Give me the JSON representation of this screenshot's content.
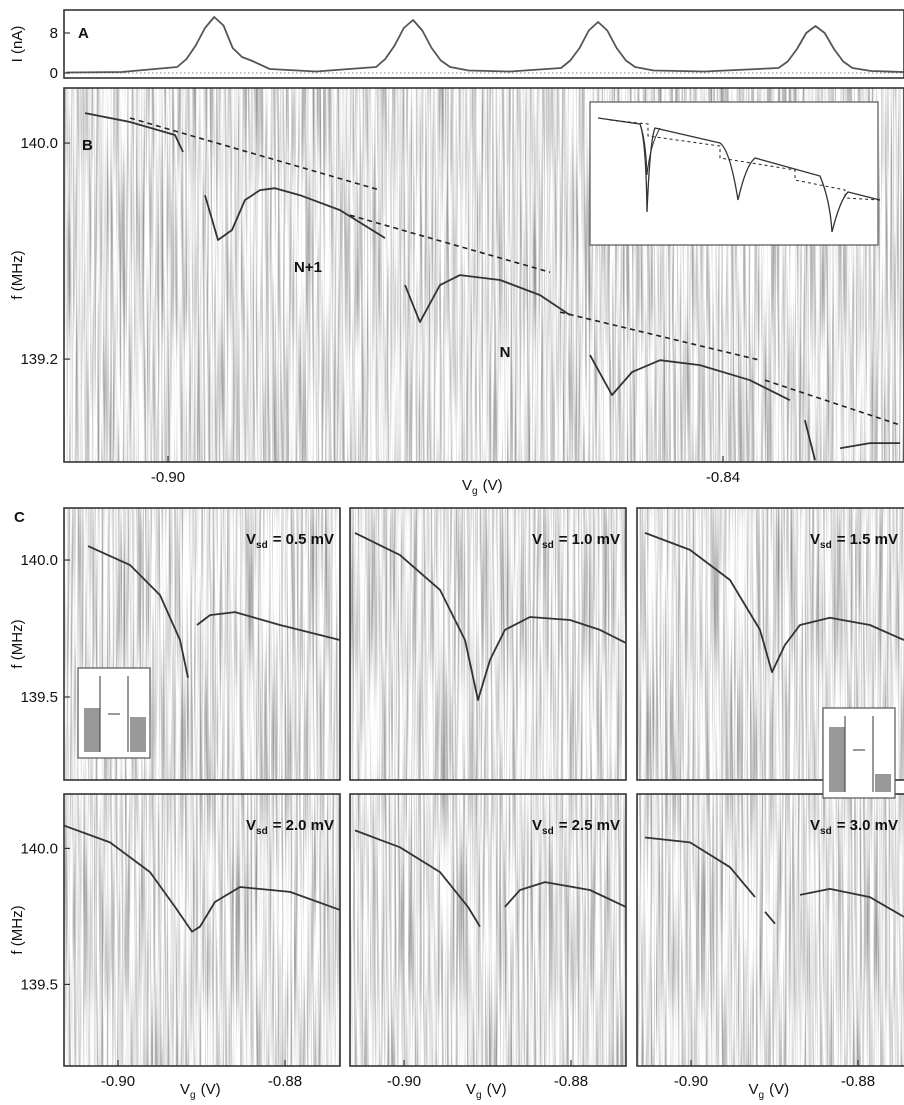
{
  "chart_data": [
    {
      "type": "line",
      "panel_label": "A",
      "ylabel": "I (nA)",
      "color": "#555555",
      "x": [
        -0.911,
        -0.905,
        -0.899,
        -0.898,
        -0.897,
        -0.896,
        -0.895,
        -0.894,
        -0.893,
        -0.892,
        -0.891,
        -0.889,
        -0.884,
        -0.8775,
        -0.8765,
        -0.8755,
        -0.8745,
        -0.8735,
        -0.8725,
        -0.8715,
        -0.8705,
        -0.8695,
        -0.8675,
        -0.863,
        -0.8575,
        -0.8565,
        -0.8555,
        -0.8545,
        -0.8535,
        -0.8525,
        -0.8515,
        -0.8505,
        -0.8495,
        -0.8475,
        -0.842,
        -0.834,
        -0.833,
        -0.832,
        -0.831,
        -0.83,
        -0.829,
        -0.828,
        -0.827,
        -0.826,
        -0.824,
        -0.8205
      ],
      "values": [
        0.1,
        0.2,
        1.2,
        2.8,
        5.5,
        9,
        11.2,
        9.5,
        5,
        3.2,
        2.5,
        0.8,
        0.3,
        1.2,
        2.8,
        5.5,
        9,
        10.6,
        8.5,
        5,
        2.5,
        1.2,
        0.5,
        0.3,
        1,
        2.5,
        5,
        8.5,
        10.2,
        8.5,
        5,
        2.5,
        1.2,
        0.5,
        0.3,
        1,
        2.3,
        4.8,
        8,
        9.4,
        8,
        4.8,
        2.3,
        1,
        0.4,
        0.2
      ],
      "reference_line": 0,
      "xlim": [
        -0.91124,
        -0.82043
      ],
      "ylim": [
        -1,
        12.6
      ],
      "yticks": [
        0,
        8
      ]
    },
    {
      "type": "line",
      "panel_label": "B",
      "ylabel": "f (MHz)",
      "xlabel": {
        "symbol": "V",
        "subscript": "g",
        "rest": "(V)"
      },
      "annotations": [
        "N+1",
        "N"
      ],
      "series": [
        {
          "color": "#333333",
          "dashed": false,
          "x": [
            -0.90897,
            -0.90411,
            -0.89924,
            -0.89838,
            null,
            -0.896,
            -0.89459,
            -0.89308,
            -0.89168,
            -0.89005,
            -0.88843,
            -0.88573,
            -0.8814,
            -0.87654,
            null,
            -0.87438,
            -0.87276,
            -0.87059,
            -0.86843,
            -0.86411,
            -0.85978,
            -0.85654,
            null,
            -0.85438,
            -0.852,
            -0.84984,
            -0.84681,
            -0.84249,
            -0.83708,
            -0.83276,
            null,
            -0.83114,
            -0.83005,
            null,
            -0.82735,
            -0.82411,
            -0.82086
          ],
          "values": [
            140.111,
            140.078,
            140.03,
            139.967,
            null,
            139.807,
            139.641,
            139.678,
            139.789,
            139.826,
            139.833,
            139.807,
            139.752,
            139.648,
            null,
            139.474,
            139.337,
            139.474,
            139.511,
            139.493,
            139.437,
            139.363,
            null,
            139.215,
            139.067,
            139.152,
            139.196,
            139.178,
            139.122,
            139.048,
            null,
            138.974,
            138.826,
            null,
            138.87,
            138.889,
            138.889
          ]
        },
        {
          "color": "#222222",
          "dashed": true,
          "x": [
            -0.90411,
            -0.87708,
            null,
            -0.88032,
            -0.8587,
            null,
            -0.85762,
            -0.836,
            null,
            -0.83546,
            -0.82086
          ],
          "values": [
            140.093,
            139.826,
            null,
            139.733,
            139.522,
            null,
            139.374,
            139.196,
            null,
            139.122,
            138.956
          ]
        }
      ],
      "xlim": [
        -0.91124,
        -0.82043
      ],
      "ylim": [
        138.819,
        140.204
      ],
      "xticks": [
        {
          "value": -0.9,
          "label": "-0.90"
        },
        -0.84
      ],
      "yticks": [
        {
          "value": 140,
          "label": "140.0"
        },
        139.2
      ]
    },
    {
      "type": "line",
      "panel_label": "C",
      "ylabel": "f (MHz)",
      "color": "#333333",
      "title": {
        "symbol": "V",
        "subscript": "sd",
        "rest": "= 0.5 mV"
      },
      "x": [
        -0.9036,
        -0.89857,
        -0.89497,
        -0.89258,
        -0.89162,
        null,
        -0.89054,
        -0.88898,
        -0.88599,
        -0.8806,
        -0.87342
      ],
      "values": [
        140.051,
        139.982,
        139.872,
        139.708,
        139.57,
        null,
        139.763,
        139.799,
        139.81,
        139.763,
        139.708
      ],
      "xlim": [
        -0.90647,
        -0.87341
      ],
      "ylim": [
        139.197,
        140.19
      ],
      "yticks": [
        {
          "value": 140,
          "label": "140.0"
        },
        139.5
      ]
    },
    {
      "type": "line",
      "color": "#333333",
      "title": {
        "symbol": "V",
        "subscript": "sd",
        "rest": "= 1.0 mV"
      },
      "x": [
        -0.90587,
        -0.90048,
        -0.89569,
        -0.8927,
        -0.89114,
        -0.8897,
        -0.88791,
        -0.88491,
        -0.88012,
        -0.87653,
        -0.87342
      ],
      "values": [
        140.099,
        140.018,
        139.891,
        139.708,
        139.489,
        139.635,
        139.745,
        139.792,
        139.781,
        139.745,
        139.697
      ],
      "xlim": [
        -0.90647,
        -0.87341
      ],
      "ylim": [
        139.197,
        140.19
      ]
    },
    {
      "type": "line",
      "color": "#333333",
      "title": {
        "symbol": "V",
        "subscript": "sd",
        "rest": "= 1.5 mV"
      },
      "x": [
        -0.90551,
        -0.90012,
        -0.89533,
        -0.89174,
        -0.8903,
        -0.88875,
        -0.88695,
        -0.88336,
        -0.87857,
        -0.8745
      ],
      "values": [
        140.099,
        140.037,
        139.927,
        139.745,
        139.591,
        139.69,
        139.763,
        139.789,
        139.763,
        139.708
      ],
      "xlim": [
        -0.90647,
        -0.87341
      ],
      "ylim": [
        139.197,
        140.19
      ]
    },
    {
      "type": "line",
      "ylabel": "f (MHz)",
      "color": "#333333",
      "title": {
        "symbol": "V",
        "subscript": "sd",
        "rest": "= 2.0 mV"
      },
      "xlabel": {
        "symbol": "V",
        "subscript": "g",
        "rest": "(V)"
      },
      "x": [
        -0.90647,
        -0.90096,
        -0.89617,
        -0.89318,
        -0.89114,
        -0.89018,
        -0.88839,
        -0.88539,
        -0.8794,
        -0.87342
      ],
      "values": [
        140.084,
        140.022,
        139.913,
        139.785,
        139.694,
        139.712,
        139.803,
        139.858,
        139.84,
        139.774
      ],
      "xlim": [
        -0.90647,
        -0.87341
      ],
      "ylim": [
        139.2,
        140.2
      ],
      "xticks": [
        {
          "value": -0.9,
          "label": "-0.90"
        },
        -0.88
      ],
      "yticks": [
        {
          "value": 140,
          "label": "140.0"
        },
        139.5
      ]
    },
    {
      "type": "line",
      "color": "#333333",
      "title": {
        "symbol": "V",
        "subscript": "sd",
        "rest": "= 2.5 mV"
      },
      "xlabel": {
        "symbol": "V",
        "subscript": "g",
        "rest": "(V)"
      },
      "x": [
        -0.90587,
        -0.90048,
        -0.89569,
        -0.89234,
        -0.8909,
        null,
        -0.88791,
        -0.88611,
        -0.88311,
        -0.87773,
        -0.87342
      ],
      "values": [
        140.066,
        140.004,
        139.913,
        139.785,
        139.712,
        null,
        139.785,
        139.847,
        139.876,
        139.847,
        139.785
      ],
      "xlim": [
        -0.90647,
        -0.87341
      ],
      "ylim": [
        139.2,
        140.2
      ],
      "xticks": [
        {
          "value": -0.9,
          "label": "-0.90"
        },
        -0.88
      ]
    },
    {
      "type": "line",
      "color": "#333333",
      "title": {
        "symbol": "V",
        "subscript": "sd",
        "rest": "= 3.0 mV"
      },
      "xlabel": {
        "symbol": "V",
        "subscript": "g",
        "rest": "(V)"
      },
      "x": [
        -0.90551,
        -0.90012,
        -0.89533,
        -0.89234,
        null,
        -0.89114,
        -0.88994,
        null,
        -0.88695,
        -0.88336,
        -0.87857,
        -0.8745
      ],
      "values": [
        140.04,
        140.022,
        139.931,
        139.821,
        null,
        139.767,
        139.723,
        null,
        139.829,
        139.851,
        139.821,
        139.748
      ],
      "xlim": [
        -0.90647,
        -0.87341
      ],
      "ylim": [
        139.2,
        140.2
      ],
      "xticks": [
        {
          "value": -0.9,
          "label": "-0.90"
        },
        -0.88
      ]
    }
  ]
}
